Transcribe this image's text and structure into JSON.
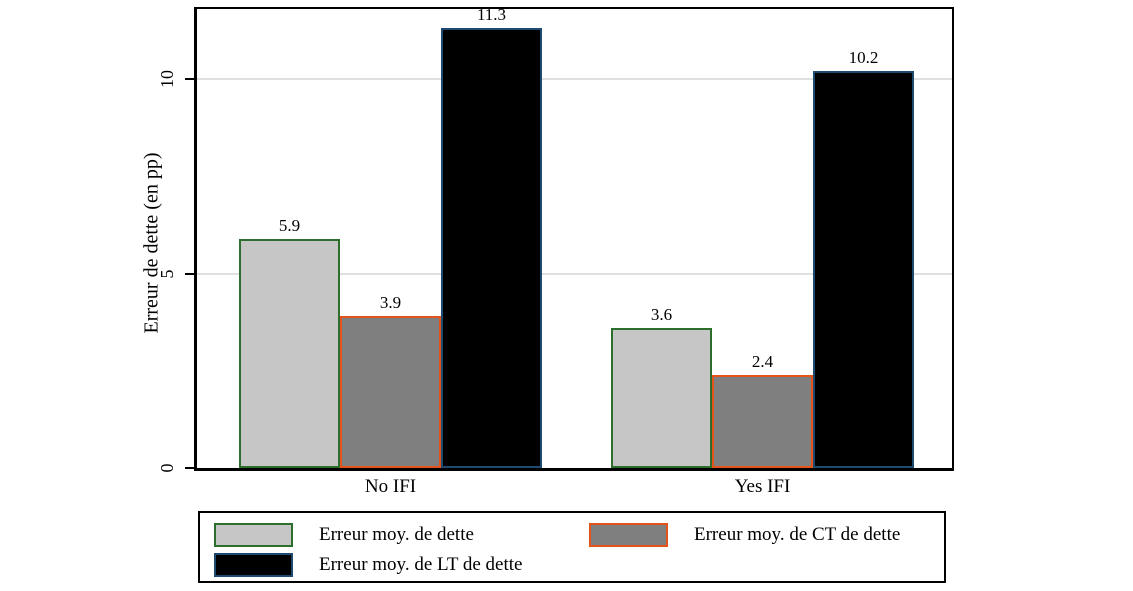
{
  "chart_data": {
    "type": "bar",
    "title": "",
    "categories": [
      "No IFI",
      "Yes IFI"
    ],
    "series": [
      {
        "name": "Erreur moy. de dette",
        "values": [
          5.9,
          3.6
        ],
        "fill": "#c6c6c6",
        "border": "#2c6e2c"
      },
      {
        "name": "Erreur moy. de CT de dette",
        "values": [
          3.9,
          2.4
        ],
        "fill": "#7f7f7f",
        "border": "#e5531d"
      },
      {
        "name": "Erreur moy. de LT de dette",
        "values": [
          11.3,
          10.2
        ],
        "fill": "#000000",
        "border": "#1f4a70"
      }
    ],
    "xlabel": "",
    "ylabel": "Erreur de dette (en pp)",
    "ylim": [
      0,
      11.8
    ],
    "yticks": [
      0,
      5,
      10
    ],
    "grid": true,
    "value_labels": true,
    "legend_position": "bottom"
  },
  "colors": {
    "background": "#ffffff",
    "gridline": "#e0e0e0",
    "axis": "#000000",
    "text": "#000000"
  }
}
